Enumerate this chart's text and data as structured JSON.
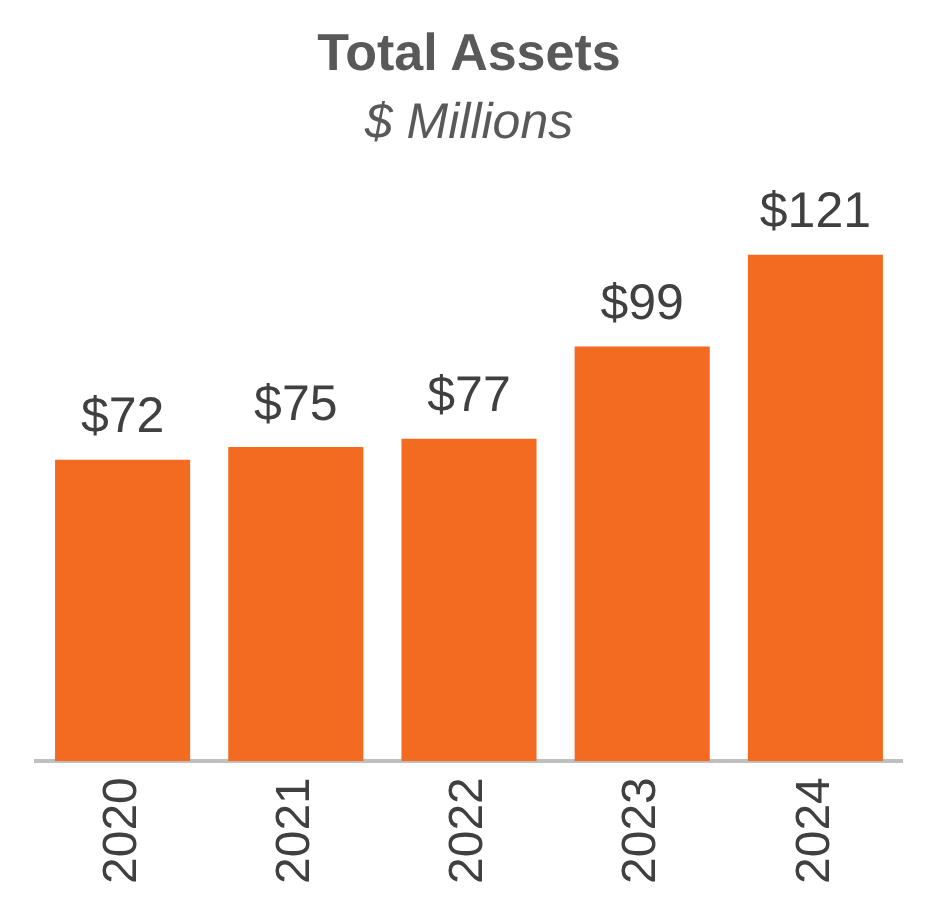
{
  "chart_data": {
    "type": "bar",
    "title": "Total Assets",
    "subtitle": "$ Millions",
    "categories": [
      "2020",
      "2021",
      "2022",
      "2023",
      "2024"
    ],
    "values": [
      72,
      75,
      77,
      99,
      121
    ],
    "value_labels": [
      "$72",
      "$75",
      "$77",
      "$99",
      "$121"
    ],
    "color": "#f26b21",
    "grid": false,
    "legend": false
  }
}
